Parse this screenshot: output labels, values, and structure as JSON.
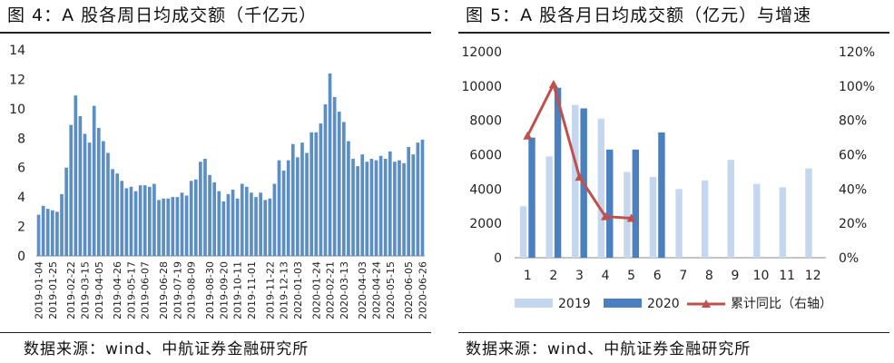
{
  "left_panel": {
    "title": "图 4：A 股各周日均成交额（千亿元）",
    "source": "数据来源：wind、中航证券金融研究所"
  },
  "right_panel": {
    "title": "图 5：A 股各月日均成交额（亿元）与增速",
    "source": "数据来源：wind、中航证券金融研究所"
  },
  "colors": {
    "weekly_bar": "#5b8ec4",
    "bar_2019": "#c5d7ee",
    "bar_2020": "#4a7fc0",
    "line_yoy": "#c0504d"
  },
  "chart_data": [
    {
      "type": "bar",
      "title": "A 股各周日均成交额（千亿元）",
      "ylim": [
        0,
        14
      ],
      "yticks": [
        0,
        2,
        4,
        6,
        8,
        10,
        12,
        14
      ],
      "tick_labels": [
        "2019-01-04",
        "2019-01-25",
        "2019-02-22",
        "2019-03-15",
        "2019-04-05",
        "2019-04-26",
        "2019-05-17",
        "2019-06-07",
        "2019-06-28",
        "2019-07-19",
        "2019-08-09",
        "2019-08-30",
        "2019-09-20",
        "2019-10-11",
        "2019-11-01",
        "2019-11-22",
        "2019-12-13",
        "2020-01-03",
        "2020-01-24",
        "2020-02-21",
        "2020-03-13",
        "2020-04-03",
        "2020-04-24",
        "2020-05-15",
        "2020-06-05",
        "2020-06-26"
      ],
      "values": [
        2.8,
        3.4,
        3.2,
        3.1,
        3.0,
        4.2,
        6.0,
        8.9,
        10.9,
        9.5,
        8.3,
        7.7,
        10.2,
        8.7,
        7.8,
        7.0,
        5.9,
        5.6,
        5.1,
        4.6,
        4.7,
        4.4,
        4.8,
        4.8,
        4.7,
        4.9,
        3.8,
        3.9,
        3.9,
        4.0,
        4.0,
        4.3,
        4.1,
        5.1,
        5.2,
        6.4,
        6.6,
        5.5,
        5.0,
        4.4,
        3.7,
        4.2,
        4.5,
        3.9,
        4.9,
        4.7,
        4.3,
        4.0,
        4.3,
        3.8,
        3.9,
        4.9,
        6.5,
        5.8,
        6.5,
        7.6,
        6.7,
        7.7,
        7.0,
        8.4,
        8.4,
        9.0,
        10.3,
        12.4,
        10.8,
        9.8,
        9.1,
        7.8,
        6.6,
        6.1,
        6.9,
        6.4,
        6.6,
        6.5,
        6.8,
        6.6,
        7.1,
        6.4,
        6.5,
        6.3,
        7.4,
        6.9,
        7.7,
        7.9
      ]
    },
    {
      "type": "bar",
      "title": "A 股各月日均成交额（亿元）与增速",
      "categories": [
        "1",
        "2",
        "3",
        "4",
        "5",
        "6",
        "7",
        "8",
        "9",
        "10",
        "11",
        "12"
      ],
      "ylim": [
        0,
        12000
      ],
      "yticks": [
        0,
        2000,
        4000,
        6000,
        8000,
        10000,
        12000
      ],
      "y2lim": [
        0,
        120
      ],
      "y2ticks": [
        "0%",
        "20%",
        "40%",
        "60%",
        "80%",
        "100%",
        "120%"
      ],
      "series": [
        {
          "name": "2019",
          "values": [
            3000,
            5900,
            8900,
            8100,
            5000,
            4700,
            4000,
            4500,
            5700,
            4300,
            4100,
            5200
          ]
        },
        {
          "name": "2020",
          "values": [
            7000,
            9900,
            8700,
            6300,
            6300,
            7300,
            null,
            null,
            null,
            null,
            null,
            null
          ]
        },
        {
          "name": "累计同比（右轴）",
          "type": "line",
          "axis": "right",
          "values": [
            71,
            101,
            47,
            24,
            23,
            null,
            null,
            null,
            null,
            null,
            null,
            null
          ]
        }
      ]
    }
  ]
}
